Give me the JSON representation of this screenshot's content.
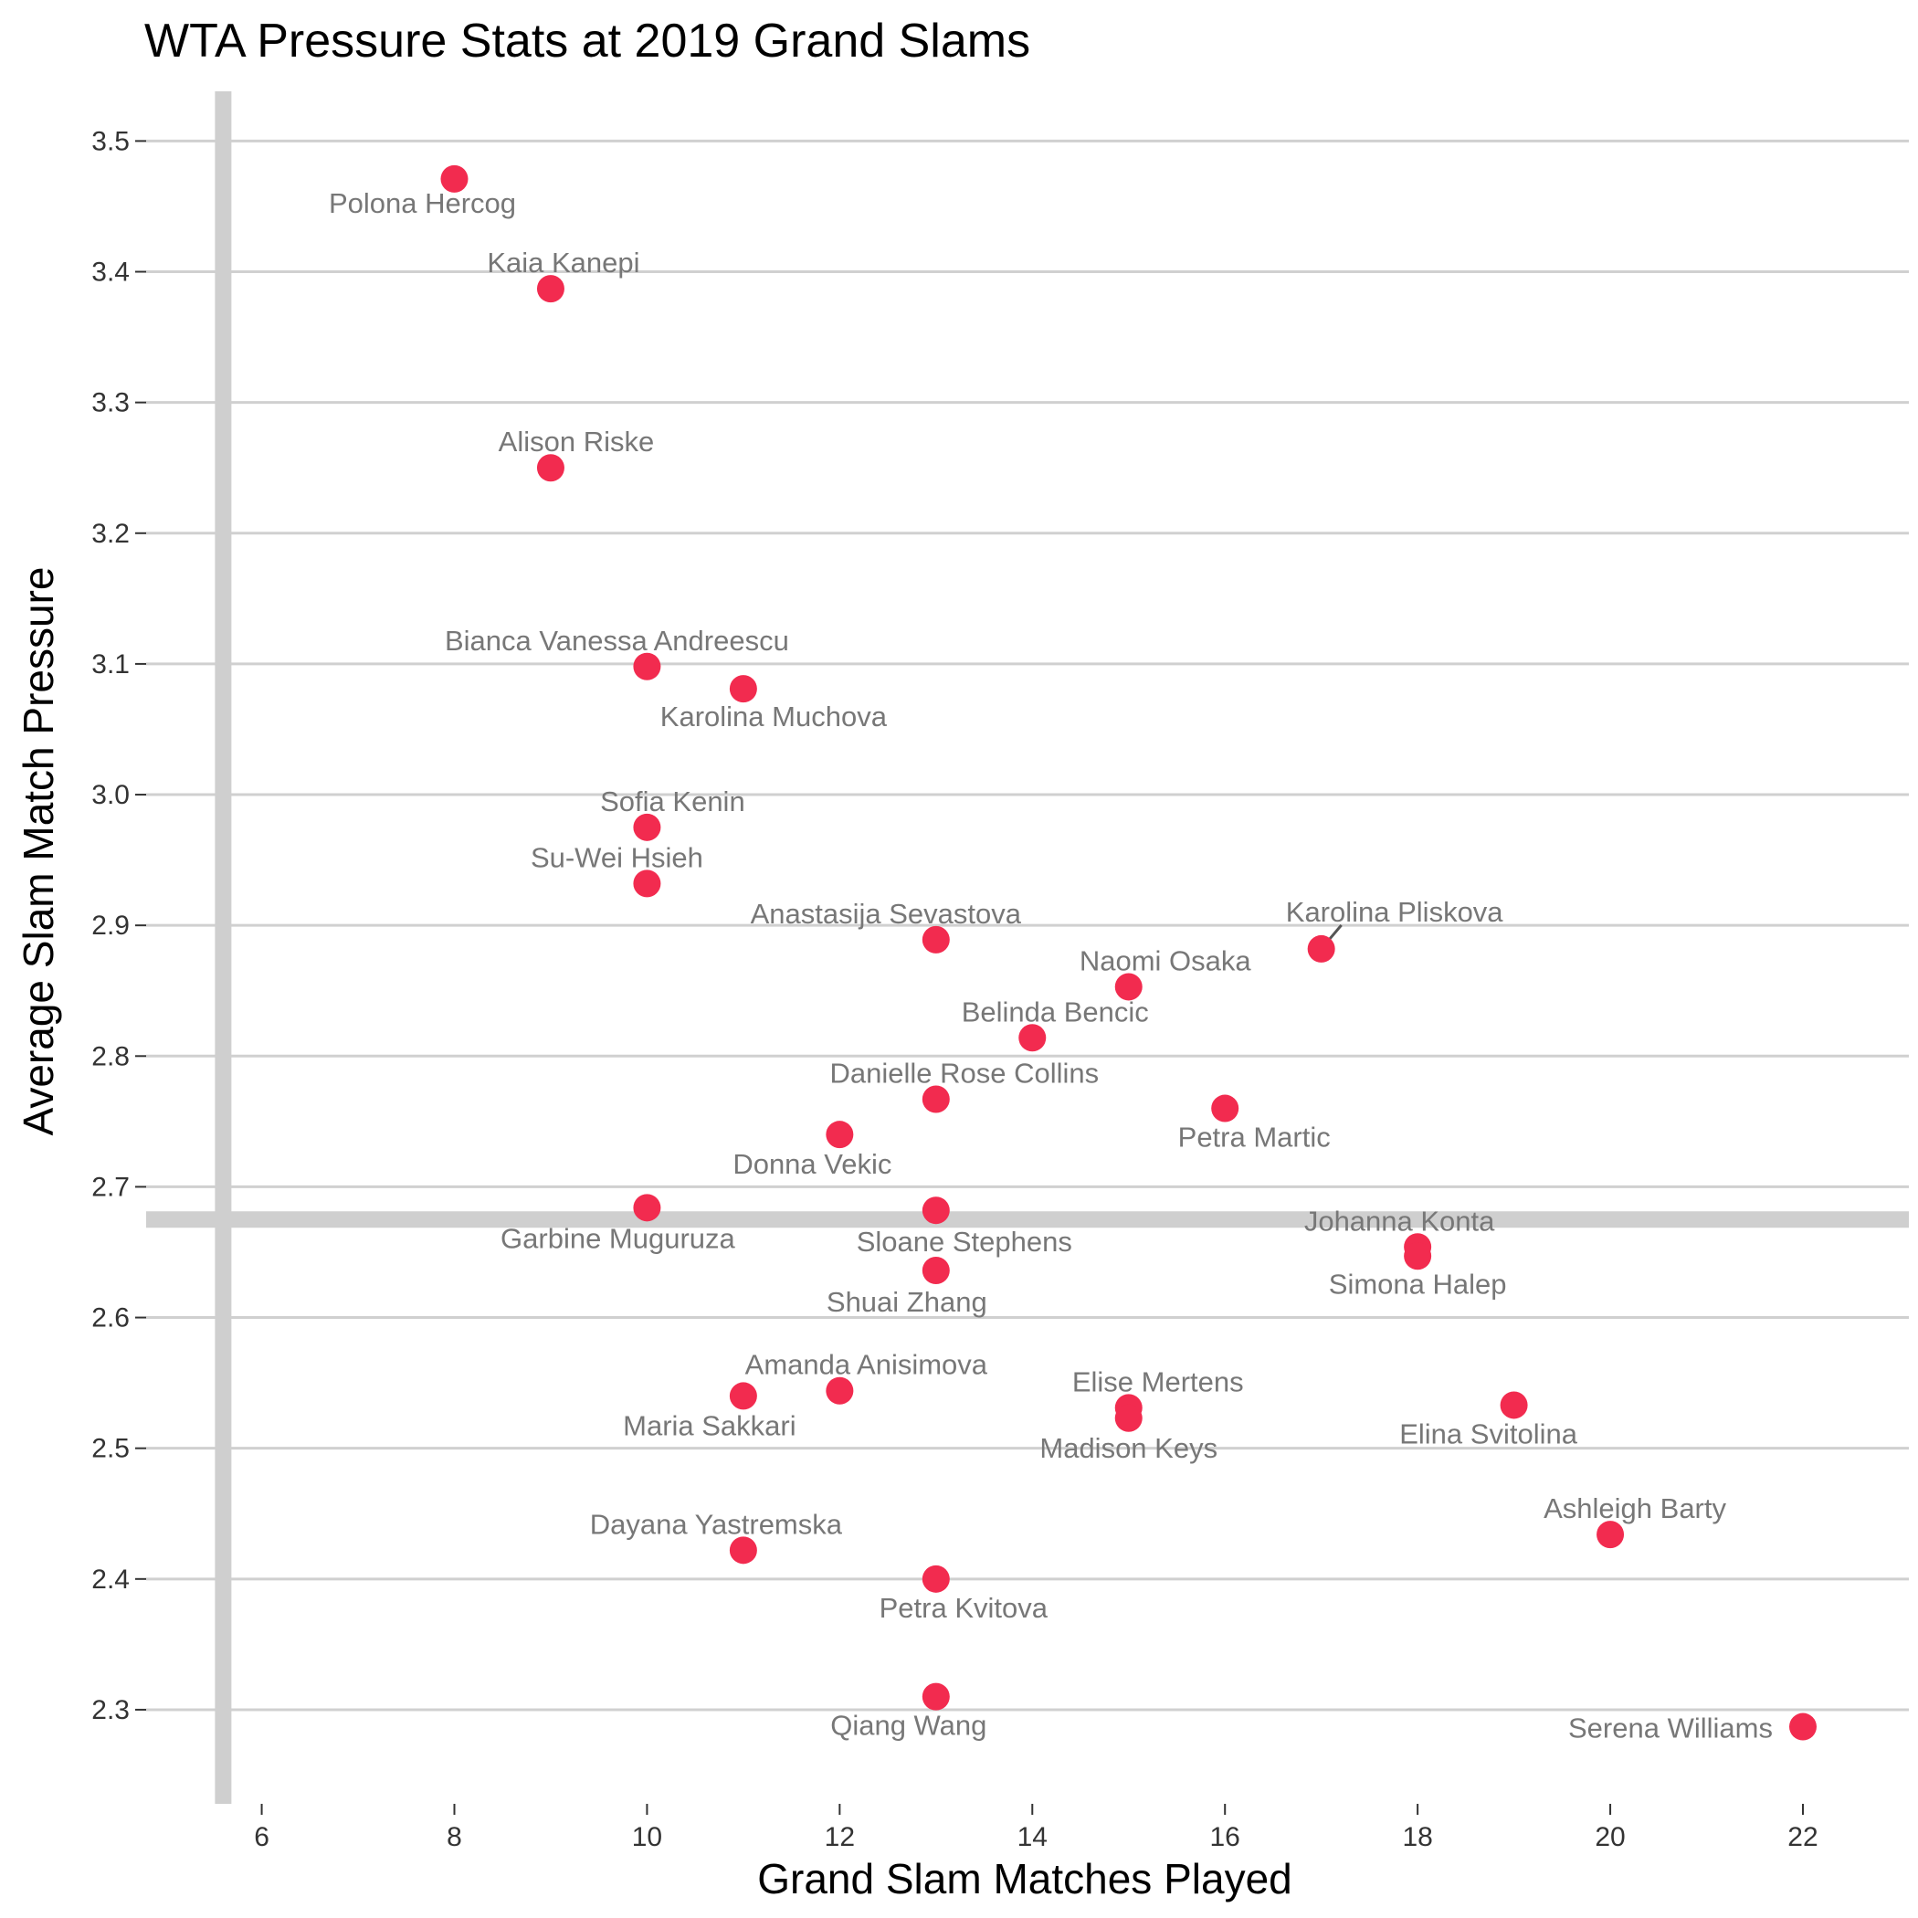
{
  "chart_data": {
    "type": "scatter",
    "title": "WTA Pressure Stats at 2019 Grand Slams",
    "xlabel": "Grand Slam Matches Played",
    "ylabel": "Average Slam Match Pressure",
    "xlim": [
      4.8,
      23.1
    ],
    "ylim": [
      2.228,
      3.538
    ],
    "x_ticks": [
      6,
      8,
      10,
      12,
      14,
      16,
      18,
      20,
      22
    ],
    "y_ticks": [
      2.3,
      2.4,
      2.5,
      2.6,
      2.7,
      2.8,
      2.9,
      3.0,
      3.1,
      3.2,
      3.3,
      3.4,
      3.5
    ],
    "x_tick_labels": [
      "6",
      "8",
      "10",
      "12",
      "14",
      "16",
      "18",
      "20",
      "22"
    ],
    "y_tick_labels": [
      "2.3",
      "2.4",
      "2.5",
      "2.6",
      "2.7",
      "2.8",
      "2.9",
      "3.0",
      "3.1",
      "3.2",
      "3.3",
      "3.4",
      "3.5"
    ],
    "grid": "horizontal",
    "reference_lines": {
      "vertical_x": 5.6,
      "horizontal_y": 2.675
    },
    "point_color": "#f22b4f",
    "reference_line_color": "#cfcfcf",
    "points": [
      {
        "name": "Polona Hercog",
        "x": 8,
        "y": 3.471
      },
      {
        "name": "Kaia Kanepi",
        "x": 9,
        "y": 3.387
      },
      {
        "name": "Alison Riske",
        "x": 9,
        "y": 3.25
      },
      {
        "name": "Bianca Vanessa Andreescu",
        "x": 10,
        "y": 3.098
      },
      {
        "name": "Karolina Muchova",
        "x": 11,
        "y": 3.081
      },
      {
        "name": "Sofia Kenin",
        "x": 10,
        "y": 2.975
      },
      {
        "name": "Su-Wei Hsieh",
        "x": 10,
        "y": 2.932
      },
      {
        "name": "Anastasija Sevastova",
        "x": 13,
        "y": 2.889
      },
      {
        "name": "Karolina Pliskova",
        "x": 17,
        "y": 2.882
      },
      {
        "name": "Naomi Osaka",
        "x": 15,
        "y": 2.853
      },
      {
        "name": "Belinda Bencic",
        "x": 14,
        "y": 2.814
      },
      {
        "name": "Danielle Rose Collins",
        "x": 13,
        "y": 2.767
      },
      {
        "name": "Petra Martic",
        "x": 16,
        "y": 2.76
      },
      {
        "name": "Donna Vekic",
        "x": 12,
        "y": 2.74
      },
      {
        "name": "Garbine Muguruza",
        "x": 10,
        "y": 2.684
      },
      {
        "name": "Sloane Stephens",
        "x": 13,
        "y": 2.682
      },
      {
        "name": "Johanna Konta",
        "x": 18,
        "y": 2.654
      },
      {
        "name": "Simona Halep",
        "x": 18,
        "y": 2.647
      },
      {
        "name": "Shuai Zhang",
        "x": 13,
        "y": 2.636
      },
      {
        "name": "Amanda Anisimova",
        "x": 12,
        "y": 2.544
      },
      {
        "name": "Maria Sakkari",
        "x": 11,
        "y": 2.54
      },
      {
        "name": "Elina Svitolina",
        "x": 19,
        "y": 2.533
      },
      {
        "name": "Elise Mertens",
        "x": 15,
        "y": 2.531
      },
      {
        "name": "Madison Keys",
        "x": 15,
        "y": 2.523
      },
      {
        "name": "Ashleigh Barty",
        "x": 20,
        "y": 2.434
      },
      {
        "name": "Dayana Yastremska",
        "x": 11,
        "y": 2.422
      },
      {
        "name": "Petra Kvitova",
        "x": 13,
        "y": 2.4
      },
      {
        "name": "Qiang Wang",
        "x": 13,
        "y": 2.31
      },
      {
        "name": "Serena Williams",
        "x": 22,
        "y": 2.287
      }
    ]
  }
}
